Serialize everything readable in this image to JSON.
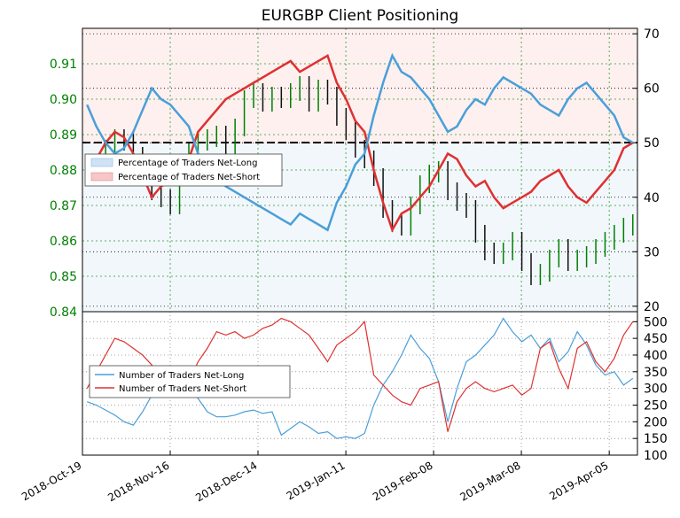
{
  "chart_data": [
    {
      "type": "line",
      "title": "EURGBP Client Positioning",
      "panel": "upper",
      "left_axis": {
        "label": "",
        "ylim": [
          0.84,
          0.92
        ],
        "ticks": [
          "0.84",
          "0.85",
          "0.86",
          "0.87",
          "0.88",
          "0.89",
          "0.90",
          "0.91"
        ]
      },
      "right_axis": {
        "label": "",
        "ylim": [
          19,
          71
        ],
        "ticks": [
          "20",
          "30",
          "40",
          "50",
          "60",
          "70"
        ]
      },
      "reference_line": 50,
      "grid": true,
      "legend": {
        "placement": "center-left",
        "entries": [
          "Percentage of Traders Net-Long",
          "Percentage of Traders Net-Short"
        ]
      },
      "x": [
        "2018-10-19",
        "2018-10-22",
        "2018-10-25",
        "2018-10-28",
        "2018-10-31",
        "2018-11-03",
        "2018-11-06",
        "2018-11-09",
        "2018-11-12",
        "2018-11-15",
        "2018-11-18",
        "2018-11-21",
        "2018-11-24",
        "2018-11-27",
        "2018-11-30",
        "2018-12-03",
        "2018-12-06",
        "2018-12-09",
        "2018-12-12",
        "2018-12-15",
        "2018-12-18",
        "2018-12-21",
        "2018-12-24",
        "2018-12-27",
        "2018-12-30",
        "2019-01-02",
        "2019-01-05",
        "2019-01-08",
        "2019-01-11",
        "2019-01-14",
        "2019-01-17",
        "2019-01-20",
        "2019-01-23",
        "2019-01-26",
        "2019-01-29",
        "2019-02-01",
        "2019-02-04",
        "2019-02-07",
        "2019-02-10",
        "2019-02-13",
        "2019-02-16",
        "2019-02-19",
        "2019-02-22",
        "2019-02-25",
        "2019-02-28",
        "2019-03-03",
        "2019-03-06",
        "2019-03-09",
        "2019-03-12",
        "2019-03-15",
        "2019-03-18",
        "2019-03-21",
        "2019-03-24",
        "2019-03-27",
        "2019-03-30",
        "2019-04-02",
        "2019-04-05",
        "2019-04-08",
        "2019-04-11",
        "2019-04-14"
      ],
      "series": [
        {
          "name": "Percentage of Traders Net-Long",
          "color": "#4a9fd8",
          "axis": "right",
          "values": [
            57,
            53,
            50,
            48,
            49,
            52,
            56,
            60,
            58,
            57,
            55,
            53,
            48,
            46,
            44,
            42,
            41,
            40,
            39,
            38,
            37,
            36,
            35,
            37,
            36,
            35,
            34,
            39,
            42,
            46,
            48,
            55,
            61,
            66,
            63,
            62,
            60,
            58,
            55,
            52,
            53,
            56,
            58,
            57,
            60,
            62,
            61,
            60,
            59,
            57,
            56,
            55,
            58,
            60,
            61,
            59,
            57,
            55,
            51,
            50
          ]
        },
        {
          "name": "Percentage of Traders Net-Short",
          "color": "#e03030",
          "axis": "right",
          "values": [
            43,
            47,
            50,
            52,
            51,
            48,
            44,
            40,
            42,
            43,
            45,
            47,
            52,
            54,
            56,
            58,
            59,
            60,
            61,
            62,
            63,
            64,
            65,
            63,
            64,
            65,
            66,
            61,
            58,
            54,
            52,
            45,
            39,
            34,
            37,
            38,
            40,
            42,
            45,
            48,
            47,
            44,
            42,
            43,
            40,
            38,
            39,
            40,
            41,
            43,
            44,
            45,
            42,
            40,
            39,
            41,
            43,
            45,
            49,
            50
          ]
        },
        {
          "name": "EURGBP",
          "color": "#008000",
          "axis": "left",
          "values": [
            0.88,
            0.881,
            0.886,
            0.889,
            0.888,
            0.884,
            0.879,
            0.874,
            0.872,
            0.87,
            0.878,
            0.885,
            0.888,
            0.889,
            0.89,
            0.887,
            0.892,
            0.9,
            0.902,
            0.899,
            0.901,
            0.9,
            0.902,
            0.904,
            0.899,
            0.903,
            0.901,
            0.895,
            0.891,
            0.886,
            0.883,
            0.878,
            0.869,
            0.865,
            0.864,
            0.87,
            0.876,
            0.879,
            0.88,
            0.874,
            0.871,
            0.869,
            0.862,
            0.857,
            0.856,
            0.857,
            0.86,
            0.854,
            0.85,
            0.851,
            0.855,
            0.858,
            0.854,
            0.855,
            0.856,
            0.858,
            0.86,
            0.862,
            0.864,
            0.865
          ]
        }
      ]
    },
    {
      "type": "line",
      "panel": "lower",
      "right_axis": {
        "label": "",
        "ylim": [
          100,
          530
        ],
        "ticks": [
          "100",
          "150",
          "200",
          "250",
          "300",
          "350",
          "400",
          "450",
          "500"
        ]
      },
      "x_ticks": [
        "2018-Oct-19",
        "2018-Nov-16",
        "2018-Dec-14",
        "2019-Jan-11",
        "2019-Feb-08",
        "2019-Mar-08",
        "2019-Apr-05"
      ],
      "grid": true,
      "legend": {
        "placement": "center-left",
        "entries": [
          "Number of Traders Net-Long",
          "Number of Traders Net-Short"
        ]
      },
      "series": [
        {
          "name": "Number of Traders Net-Long",
          "color": "#4a9fd8",
          "values": [
            260,
            250,
            235,
            220,
            200,
            190,
            230,
            280,
            310,
            330,
            320,
            300,
            270,
            230,
            215,
            215,
            220,
            230,
            235,
            225,
            230,
            160,
            180,
            200,
            185,
            165,
            170,
            150,
            155,
            150,
            165,
            250,
            310,
            350,
            400,
            460,
            420,
            390,
            320,
            200,
            300,
            380,
            400,
            430,
            460,
            510,
            470,
            440,
            460,
            420,
            450,
            380,
            410,
            470,
            430,
            370,
            340,
            350,
            310,
            330
          ]
        },
        {
          "name": "Number of Traders Net-Short",
          "color": "#e03030",
          "values": [
            300,
            350,
            400,
            450,
            440,
            420,
            400,
            370,
            340,
            330,
            300,
            320,
            380,
            420,
            470,
            460,
            470,
            450,
            460,
            480,
            490,
            510,
            500,
            480,
            460,
            420,
            380,
            430,
            450,
            470,
            500,
            340,
            310,
            280,
            260,
            250,
            300,
            310,
            320,
            170,
            260,
            300,
            320,
            300,
            290,
            300,
            310,
            280,
            300,
            420,
            440,
            360,
            300,
            420,
            440,
            380,
            350,
            390,
            460,
            500
          ]
        }
      ]
    }
  ]
}
